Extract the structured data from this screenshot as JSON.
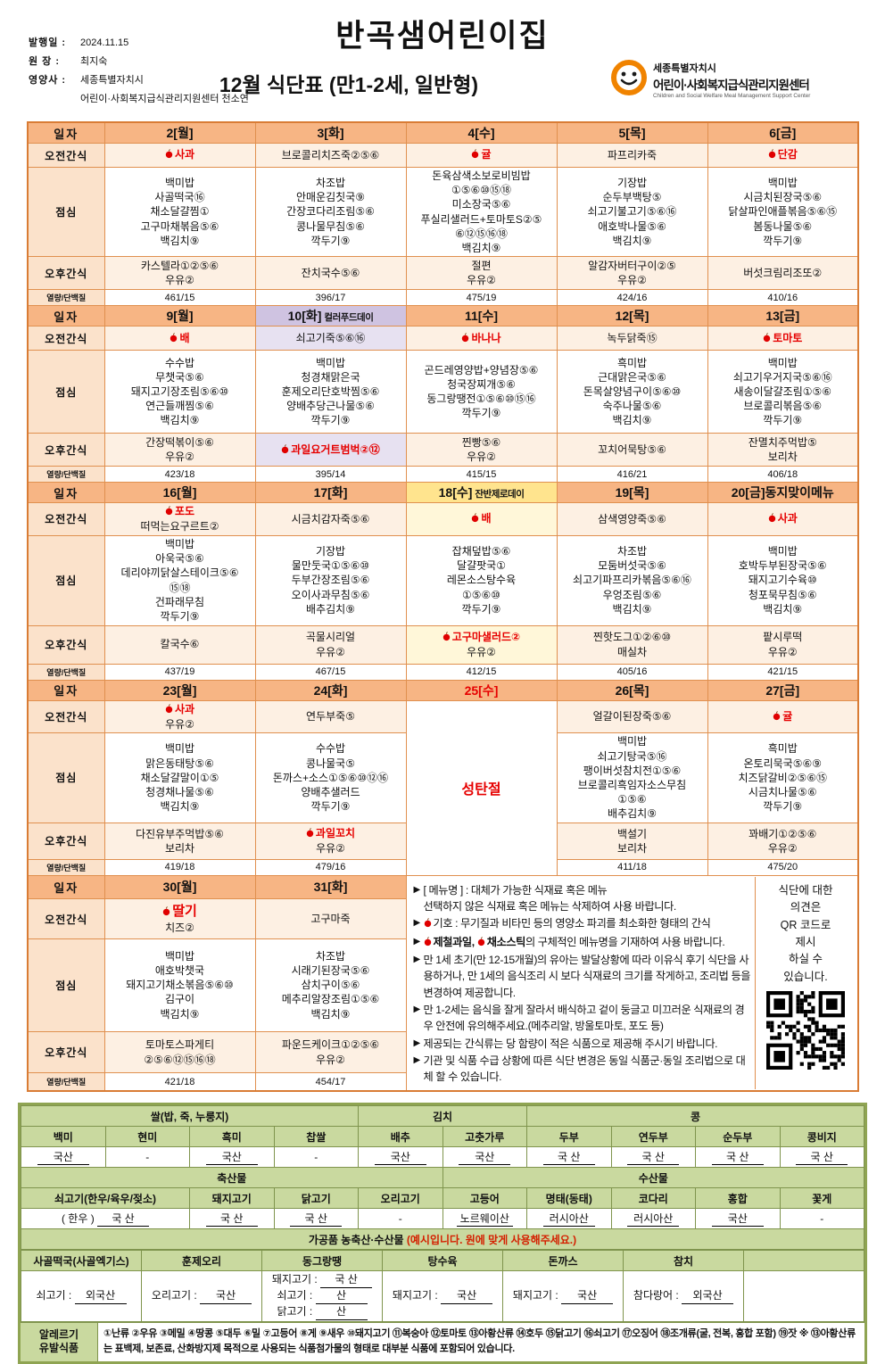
{
  "header": {
    "issue_label": "발행일 :",
    "issue_date": "2024.11.15",
    "director_label": "원  장 :",
    "director": "최지숙",
    "dietitian_label": "영양사 :",
    "dietitian": "세종특별자치시\n어린이·사회복지급식관리지원센터 천소연",
    "title": "반곡샘어린이집",
    "subtitle": "12월 식단표 (만1-2세, 일반형)",
    "logo": {
      "region": "세종특별자치시",
      "org": "어린이·사회복지급식관리지원센터",
      "org_en": "Children and Social Welfare Meal Management Support Center"
    }
  },
  "row_labels": {
    "date": "일자",
    "am": "오전간식",
    "lunch": "점심",
    "pm": "오후간식",
    "cal": "열량/단백질"
  },
  "menu": {
    "weeks": [
      {
        "days": [
          {
            "date": "2[월]",
            "am": [
              {
                "t": "사과",
                "red": true,
                "icon": true
              }
            ],
            "lunch": [
              "백미밥",
              "사골떡국⑯",
              "채소달걀찜①",
              "고구마채볶음⑤⑥",
              "백김치⑨"
            ],
            "pm": [
              "카스텔라①②⑤⑥",
              "우유②"
            ],
            "cal": "461/15"
          },
          {
            "date": "3[화]",
            "am": [
              "브로콜리치즈죽②⑤⑥"
            ],
            "lunch": [
              "차조밥",
              "안매운김칫국⑨",
              "간장코다리조림⑤⑥",
              "콩나물무침⑤⑥",
              "깍두기⑨"
            ],
            "pm": [
              "잔치국수⑤⑥"
            ],
            "cal": "396/17"
          },
          {
            "date": "4[수]",
            "am": [
              {
                "t": "귤",
                "red": true,
                "icon": true
              }
            ],
            "lunch": [
              "돈육삼색소보로비빔밥",
              "①⑤⑥⑩⑮⑱",
              "미소장국⑤⑥",
              "푸실리샐러드+토마토S②⑤",
              "⑥⑫⑮⑯⑱",
              "백김치⑨"
            ],
            "pm": [
              "절편",
              "우유②"
            ],
            "cal": "475/19"
          },
          {
            "date": "5[목]",
            "am": [
              "파프리카죽"
            ],
            "lunch": [
              "기장밥",
              "순두부백탕⑤",
              "쇠고기불고기⑤⑥⑯",
              "애호박나물⑤⑥",
              "백김치⑨"
            ],
            "pm": [
              "알감자버터구이②⑤",
              "우유②"
            ],
            "cal": "424/16"
          },
          {
            "date": "6[금]",
            "am": [
              {
                "t": "단감",
                "red": true,
                "icon": true
              }
            ],
            "lunch": [
              "백미밥",
              "시금치된장국⑤⑥",
              "닭살파인애플볶음⑤⑥⑮",
              "봄동나물⑤⑥",
              "깍두기⑨"
            ],
            "pm": [
              "버섯크림리조또②"
            ],
            "cal": "410/16"
          }
        ]
      },
      {
        "days": [
          {
            "date": "9[월]",
            "am": [
              {
                "t": "배",
                "red": true,
                "icon": true
              }
            ],
            "lunch": [
              "수수밥",
              "무챗국⑤⑥",
              "돼지고기장조림⑤⑥⑩",
              "연근들깨찜⑤⑥",
              "백김치⑨"
            ],
            "pm": [
              "간장떡볶이⑤⑥",
              "우유②"
            ],
            "cal": "423/18"
          },
          {
            "date": "10[화]",
            "note": "컬러푸드데이",
            "tint": "purple",
            "am": [
              "쇠고기죽⑤⑥⑯"
            ],
            "lunch": [
              "백미밥",
              "청경채맑은국",
              "훈제오리단호박찜⑤⑥",
              "양배추당근나물⑤⑥",
              "깍두기⑨"
            ],
            "pm": [
              {
                "t": "과일요거트범벅②⑫",
                "red": true,
                "icon": true
              }
            ],
            "cal": "395/14"
          },
          {
            "date": "11[수]",
            "am": [
              {
                "t": "바나나",
                "red": true,
                "icon": true
              }
            ],
            "lunch": [
              "곤드레영양밥+양념장⑤⑥",
              "청국장찌개⑤⑥",
              "동그랑땡전①⑤⑥⑩⑮⑯",
              "깍두기⑨"
            ],
            "pm": [
              "찐빵⑤⑥",
              "우유②"
            ],
            "cal": "415/15"
          },
          {
            "date": "12[목]",
            "am": [
              "녹두닭죽⑮"
            ],
            "lunch": [
              "흑미밥",
              "근대맑은국⑤⑥",
              "돈목살양념구이⑤⑥⑩",
              "숙주나물⑤⑥",
              "백김치⑨"
            ],
            "pm": [
              "꼬치어묵탕⑤⑥"
            ],
            "cal": "416/21"
          },
          {
            "date": "13[금]",
            "am": [
              {
                "t": "토마토",
                "red": true,
                "icon": true
              }
            ],
            "lunch": [
              "백미밥",
              "쇠고기우거지국⑤⑥⑯",
              "새송이달걀조림①⑤⑥",
              "브로콜리볶음⑤⑥",
              "깍두기⑨"
            ],
            "pm": [
              "잔멸치주먹밥⑤",
              "보리차"
            ],
            "cal": "406/18"
          }
        ]
      },
      {
        "days": [
          {
            "date": "16[월]",
            "am": [
              {
                "t": "포도",
                "red": true,
                "icon": true
              },
              "떠먹는요구르트②"
            ],
            "lunch": [
              "백미밥",
              "아욱국⑤⑥",
              "데리야끼닭살스테이크⑤⑥",
              "⑮⑱",
              "건파래무침",
              "깍두기⑨"
            ],
            "pm": [
              "칼국수⑥"
            ],
            "cal": "437/19"
          },
          {
            "date": "17[화]",
            "am": [
              "시금치감자죽⑤⑥"
            ],
            "lunch": [
              "기장밥",
              "물만둣국①⑤⑥⑩",
              "두부간장조림⑤⑥",
              "오이사과무침⑤⑥",
              "배추김치⑨"
            ],
            "pm": [
              "곡물시리얼",
              "우유②"
            ],
            "cal": "467/15"
          },
          {
            "date": "18[수]",
            "note": "잔반제로데이",
            "tint": "yellow",
            "am": [
              {
                "t": "배",
                "red": true,
                "icon": true
              }
            ],
            "lunch": [
              "잡채덮밥⑤⑥",
              "달걀팟국①",
              "레몬소스탕수육",
              "①⑤⑥⑩",
              "깍두기⑨"
            ],
            "pm": [
              {
                "t": "고구마샐러드②",
                "red": true,
                "icon": true
              },
              "우유②"
            ],
            "cal": "412/15"
          },
          {
            "date": "19[목]",
            "am": [
              "삼색영양죽⑤⑥"
            ],
            "lunch": [
              "차조밥",
              "모둠버섯국⑤⑥",
              "쇠고기파프리카볶음⑤⑥⑯",
              "우엉조림⑤⑥",
              "백김치⑨"
            ],
            "pm": [
              "찐핫도그①②⑥⑩",
              "매실차"
            ],
            "cal": "405/16"
          },
          {
            "date": "20[금]동지맞이메뉴",
            "am": [
              {
                "t": "사과",
                "red": true,
                "icon": true
              }
            ],
            "lunch": [
              "백미밥",
              "호박두부된장국⑤⑥",
              "돼지고기수육⑩",
              "청포묵무침⑤⑥",
              "백김치⑨"
            ],
            "pm": [
              "팥시루떡",
              "우유②"
            ],
            "cal": "421/15"
          }
        ]
      },
      {
        "days": [
          {
            "date": "23[월]",
            "am": [
              {
                "t": "사과",
                "red": true,
                "icon": true
              },
              "우유②"
            ],
            "lunch": [
              "백미밥",
              "맑은동태탕⑤⑥",
              "채소달걀말이①⑤",
              "청경채나물⑤⑥",
              "백김치⑨"
            ],
            "pm": [
              "다진유부주먹밥⑤⑥",
              "보리차"
            ],
            "cal": "419/18"
          },
          {
            "date": "24[화]",
            "am": [
              "연두부죽⑤"
            ],
            "lunch": [
              "수수밥",
              "콩나물국⑤",
              "돈까스+소스①⑤⑥⑩⑫⑯",
              "양배추샐러드",
              "깍두기⑨"
            ],
            "pm": [
              {
                "t": "과일꼬치",
                "red": true,
                "icon": true
              },
              "우유②"
            ],
            "cal": "479/16"
          },
          {
            "date": "25[수]",
            "date_red": true,
            "holiday": "성탄절"
          },
          {
            "date": "26[목]",
            "am": [
              "얼갈이된장죽⑤⑥"
            ],
            "lunch": [
              "백미밥",
              "쇠고기탕국⑤⑯",
              "팽이버섯참치전①⑤⑥",
              "브로콜리흑임자소스무침",
              "①⑤⑥",
              "배추김치⑨"
            ],
            "pm": [
              "백설기",
              "보리차"
            ],
            "cal": "411/18"
          },
          {
            "date": "27[금]",
            "am": [
              {
                "t": "귤",
                "red": true,
                "icon": true
              }
            ],
            "lunch": [
              "흑미밥",
              "온토리묵국⑤⑥⑨",
              "치즈닭갈비②⑤⑥⑮",
              "시금치나물⑤⑥",
              "깍두기⑨"
            ],
            "pm": [
              "꽈배기①②⑤⑥",
              "우유②"
            ],
            "cal": "475/20"
          }
        ]
      },
      {
        "notes": true,
        "days": [
          {
            "date": "30[월]",
            "am": [
              {
                "t": "딸기",
                "red": true,
                "icon": true,
                "big": true
              },
              "치즈②"
            ],
            "lunch": [
              "백미밥",
              "애호박챗국",
              "돼지고기채소볶음⑤⑥⑩",
              "김구이",
              "백김치⑨"
            ],
            "pm": [
              "토마토스파게티",
              "②⑤⑥⑫⑮⑯⑱"
            ],
            "cal": "421/18"
          },
          {
            "date": "31[화]",
            "am": [
              "고구마죽"
            ],
            "lunch": [
              "차조밥",
              "시래기된장국⑤⑥",
              "삼치구이⑤⑥",
              "메추리알장조림①⑤⑥",
              "백김치⑨"
            ],
            "pm": [
              "파운드케이크①②⑤⑥",
              "우유②"
            ],
            "cal": "454/17"
          }
        ]
      }
    ]
  },
  "notes": {
    "bullets": [
      {
        "parts": [
          {
            "t": "[ 메뉴명 ] : 대체가 가능한 식재료 혹은 메뉴\n선택하지 않은 식재료 혹은 메뉴는 삭제하여 사용 바랍니다."
          }
        ]
      },
      {
        "parts": [
          {
            "icon": true
          },
          {
            "t": "기호 : 무기질과 비타민 등의 영양소 파괴를 최소화한 형태의 간식"
          }
        ]
      },
      {
        "parts": [
          {
            "icon": true
          },
          {
            "t": "제철과일,",
            "bold": true
          },
          {
            "t": " "
          },
          {
            "icon": true
          },
          {
            "t": "채소스틱",
            "bold": true
          },
          {
            "t": "의 구체적인 메뉴명을 기재하여 사용 바랍니다."
          }
        ]
      },
      {
        "parts": [
          {
            "t": "만 1세 초기(만 12-15개월)의 유아는 발달상황에 따라 이유식 후기 식단을 사용하거나, 만 1세의 음식조리 시 보다 식재료의 크기를 작게하고, 조리법 등을 변경하여 제공합니다."
          }
        ]
      },
      {
        "parts": [
          {
            "t": "만 1-2세는 음식을 잘게 잘라서 배식하고 겉이 둥글고 미끄러운 식재료의 경우 안전에 유의해주세요.(메추리알, 방울토마토, 포도 등)"
          }
        ]
      },
      {
        "parts": [
          {
            "t": "제공되는 간식류는 당 함량이 적은 식품으로 제공해 주시기 바랍니다."
          }
        ]
      },
      {
        "parts": [
          {
            "t": "기관 및 식품 수급 상황에 따른 식단 변경은 동일 식품군·동일 조리법으로 대체 할 수 있습니다."
          }
        ]
      }
    ],
    "qr_text": "식단에 대한\n의견은\nQR 코드로\n제시\n하실 수\n있습니다."
  },
  "origin": {
    "group1": [
      {
        "t": "쌀(밥, 죽, 누룽지)",
        "span": 4
      },
      {
        "t": "김치",
        "span": 2
      },
      {
        "t": "콩",
        "span": 4
      }
    ],
    "cols1": [
      "백미",
      "현미",
      "흑미",
      "찹쌀",
      "배추",
      "고춧가루",
      "두부",
      "연두부",
      "순두부",
      "콩비지"
    ],
    "vals1": [
      "국산",
      "-",
      "국산",
      "-",
      "국산",
      "국산",
      "국 산",
      "국 산",
      "국 산",
      "국 산"
    ],
    "group2": [
      {
        "t": "축산물",
        "span": 5
      },
      {
        "t": "수산물",
        "span": 5
      }
    ],
    "cols2": [
      {
        "t": "쇠고기(한우/육우/젖소)",
        "span": 2
      },
      {
        "t": "돼지고기",
        "span": 1
      },
      {
        "t": "닭고기",
        "span": 1
      },
      {
        "t": "오리고기",
        "span": 1
      },
      {
        "t": "고등어",
        "span": 1
      },
      {
        "t": "명태(동태)",
        "span": 1
      },
      {
        "t": "코다리",
        "span": 1
      },
      {
        "t": "홍합",
        "span": 1
      },
      {
        "t": "꽃게",
        "span": 1
      }
    ],
    "vals2": [
      {
        "pre": "( 한우 )",
        "v": "국  산",
        "span": 2
      },
      {
        "v": "국 산",
        "span": 1
      },
      {
        "v": "국 산",
        "span": 1
      },
      {
        "v": "-",
        "span": 1
      },
      {
        "v": "노르웨이산",
        "span": 1
      },
      {
        "v": "러시아산",
        "span": 1
      },
      {
        "v": "러시아산",
        "span": 1
      },
      {
        "v": "국산",
        "span": 1
      },
      {
        "v": "-",
        "span": 1
      }
    ],
    "processed_black": "가공품 농축산·수산물 ",
    "processed_red": "(예시입니다. 원에 맞게 사용해주세요.)",
    "cols3": [
      "사골떡국(사골엑기스)",
      "훈제오리",
      "동그랑땡",
      "탕수육",
      "돈까스",
      "참치",
      ""
    ],
    "vals3": [
      [
        {
          "label": "쇠고기 :",
          "v": "외국산"
        }
      ],
      [
        {
          "label": "오리고기 :",
          "v": "국산"
        }
      ],
      [
        {
          "label": "돼지고기 :",
          "v": "국 산"
        },
        {
          "label": "쇠고기 :",
          "v": "산"
        },
        {
          "label": "닭고기 :",
          "v": "산"
        }
      ],
      [
        {
          "label": "돼지고기 :",
          "v": "국산"
        }
      ],
      [
        {
          "label": "돼지고기 :",
          "v": "국산"
        }
      ],
      [
        {
          "label": "참다랑어 :",
          "v": "외국산"
        }
      ],
      []
    ],
    "allergy_label": "알레르기\n유발식품",
    "allergy_text": "①난류 ②우유 ③메밀 ④땅콩 ⑤대두 ⑥밀 ⑦고등어 ⑧게 ⑨새우 ⑩돼지고기 ⑪복숭아 ⑫토마토 ⑬아황산류 ⑭호두 ⑮닭고기 ⑯쇠고기 ⑰오징어 ⑱조개류(굴, 전복, 홍합 포함) ⑲잣  ※ ⑬아황산류는 표백제, 보존료, 산화방지제 목적으로 사용되는 식품첨가물의 형태로 대부분 식품에 포함되어 있습니다."
  }
}
